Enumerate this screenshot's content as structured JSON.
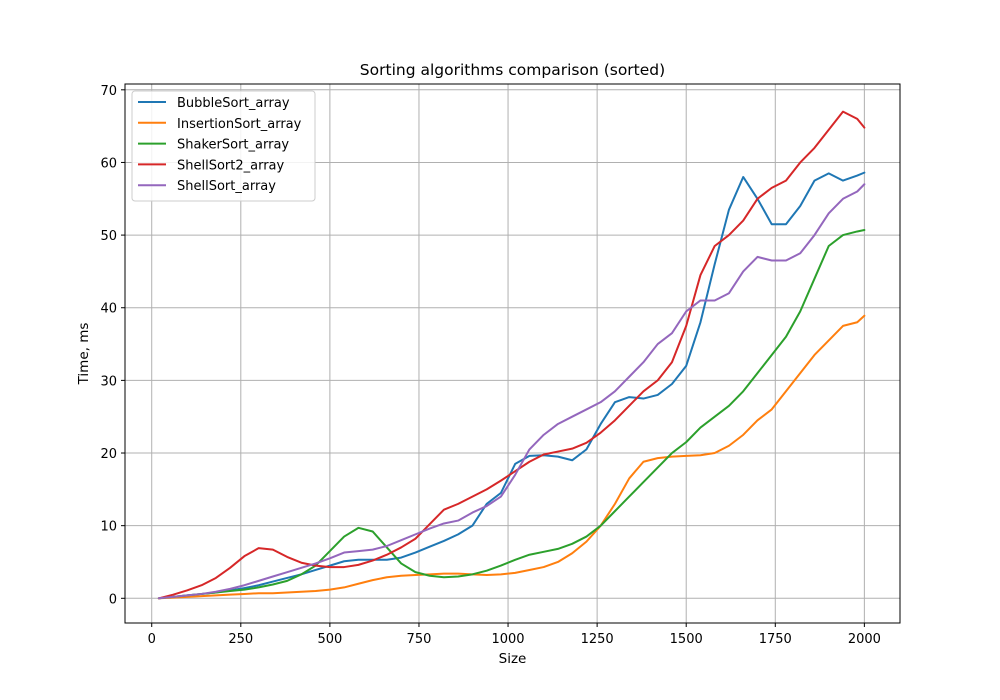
{
  "chart_data": {
    "type": "line",
    "title": "Sorting algorithms comparison (sorted)",
    "xlabel": "Size",
    "ylabel": "Time, ms",
    "xlim": [
      -75,
      2100
    ],
    "ylim": [
      -3.4,
      70.8
    ],
    "xticks": [
      0,
      250,
      500,
      750,
      1000,
      1250,
      1500,
      1750,
      2000
    ],
    "yticks": [
      0,
      10,
      20,
      30,
      40,
      50,
      60,
      70
    ],
    "grid": true,
    "legend_position": "top-left",
    "x": [
      20,
      60,
      100,
      140,
      180,
      220,
      260,
      300,
      340,
      380,
      420,
      460,
      500,
      540,
      580,
      620,
      660,
      700,
      740,
      780,
      820,
      860,
      900,
      940,
      980,
      1020,
      1060,
      1100,
      1140,
      1180,
      1220,
      1260,
      1300,
      1340,
      1380,
      1420,
      1460,
      1500,
      1540,
      1580,
      1620,
      1660,
      1700,
      1740,
      1780,
      1820,
      1860,
      1900,
      1940,
      1980,
      2000
    ],
    "series": [
      {
        "name": "BubbleSort_array",
        "color": "#1f77b4",
        "values": [
          0.0,
          0.2,
          0.4,
          0.6,
          0.8,
          1.1,
          1.4,
          1.8,
          2.3,
          2.8,
          3.3,
          3.9,
          4.5,
          5.1,
          5.3,
          5.3,
          5.3,
          5.6,
          6.3,
          7.1,
          7.9,
          8.8,
          10.0,
          13.0,
          14.5,
          18.5,
          19.6,
          19.7,
          19.5,
          19.0,
          20.5,
          24.0,
          27.0,
          27.7,
          27.5,
          28.0,
          29.5,
          32.0,
          38.0,
          46.0,
          53.5,
          58.0,
          55.0,
          51.5,
          51.5,
          54.0,
          57.5,
          58.5,
          57.5,
          58.2,
          58.6
        ]
      },
      {
        "name": "InsertionSort_array",
        "color": "#ff7f0e",
        "values": [
          0.0,
          0.1,
          0.2,
          0.3,
          0.4,
          0.5,
          0.6,
          0.7,
          0.7,
          0.8,
          0.9,
          1.0,
          1.2,
          1.5,
          2.0,
          2.5,
          2.9,
          3.1,
          3.2,
          3.3,
          3.4,
          3.4,
          3.3,
          3.2,
          3.3,
          3.5,
          3.9,
          4.3,
          5.0,
          6.2,
          7.8,
          10.0,
          13.0,
          16.5,
          18.8,
          19.3,
          19.5,
          19.6,
          19.7,
          20.0,
          21.0,
          22.5,
          24.5,
          26.0,
          28.5,
          31.0,
          33.5,
          35.5,
          37.5,
          38.0,
          38.9
        ]
      },
      {
        "name": "ShakerSort_array",
        "color": "#2ca02c",
        "values": [
          0.0,
          0.2,
          0.4,
          0.6,
          0.8,
          1.0,
          1.2,
          1.5,
          1.9,
          2.4,
          3.3,
          4.5,
          6.5,
          8.5,
          9.7,
          9.2,
          7.0,
          4.8,
          3.6,
          3.1,
          2.9,
          3.0,
          3.3,
          3.8,
          4.5,
          5.3,
          6.0,
          6.4,
          6.8,
          7.5,
          8.5,
          10.0,
          12.0,
          14.0,
          16.0,
          18.0,
          20.0,
          21.5,
          23.5,
          25.0,
          26.5,
          28.5,
          31.0,
          33.5,
          36.0,
          39.5,
          44.0,
          48.5,
          50.0,
          50.5,
          50.7
        ]
      },
      {
        "name": "ShellSort2_array",
        "color": "#d62728",
        "values": [
          0.0,
          0.5,
          1.1,
          1.8,
          2.8,
          4.2,
          5.8,
          6.9,
          6.7,
          5.7,
          4.9,
          4.5,
          4.3,
          4.3,
          4.6,
          5.2,
          6.0,
          7.0,
          8.2,
          10.2,
          12.2,
          13.0,
          14.0,
          15.0,
          16.2,
          17.5,
          18.8,
          19.8,
          20.2,
          20.6,
          21.4,
          22.8,
          24.5,
          26.5,
          28.5,
          30.0,
          32.5,
          37.5,
          44.5,
          48.5,
          50.0,
          52.0,
          55.0,
          56.5,
          57.5,
          60.0,
          62.0,
          64.5,
          67.0,
          66.0,
          64.8
        ]
      },
      {
        "name": "ShellSort_array",
        "color": "#9467bd",
        "values": [
          0.0,
          0.2,
          0.4,
          0.6,
          0.9,
          1.3,
          1.8,
          2.4,
          3.0,
          3.6,
          4.2,
          4.8,
          5.5,
          6.3,
          6.5,
          6.7,
          7.2,
          8.0,
          8.8,
          9.6,
          10.3,
          10.7,
          11.8,
          12.7,
          14.0,
          17.0,
          20.5,
          22.5,
          24.0,
          25.0,
          26.0,
          27.0,
          28.5,
          30.5,
          32.5,
          35.0,
          36.5,
          39.5,
          41.0,
          41.0,
          42.0,
          45.0,
          47.0,
          46.5,
          46.5,
          47.5,
          50.0,
          53.0,
          55.0,
          56.0,
          57.0
        ]
      }
    ]
  }
}
